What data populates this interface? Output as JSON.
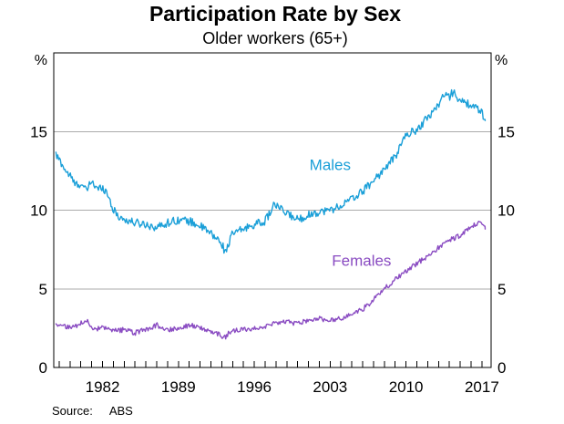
{
  "page": {
    "title": "Participation Rate by Sex",
    "subtitle": "Older workers (65+)"
  },
  "footer": {
    "source_label": "Source:",
    "source_value": "ABS"
  },
  "chart_data": {
    "type": "line",
    "title": "Participation Rate by Sex",
    "subtitle": "Older workers (65+)",
    "unit": "%",
    "unit_label_left": "%",
    "unit_label_right": "%",
    "source": "ABS",
    "x_range": [
      1977.5,
      2017.85
    ],
    "ylim": [
      0,
      20
    ],
    "yticks": [
      0,
      5,
      10,
      15
    ],
    "gridlines": [
      5,
      10,
      15
    ],
    "grid": true,
    "grid_color": "#ababab",
    "x_minor_tick_step": 1,
    "xtick_label_years": [
      1982,
      1989,
      1996,
      2003,
      2010,
      2017
    ],
    "legend_position": "inline-labels",
    "frequency": "monthly",
    "series": [
      {
        "name": "Males",
        "color": "#1a9fd8",
        "noise_amplitude": 0.26,
        "label_anchor": {
          "x": 2003.0,
          "y": 12.9
        },
        "anchors": [
          [
            1977.7,
            13.5
          ],
          [
            1978.2,
            13.0
          ],
          [
            1978.7,
            12.4
          ],
          [
            1979,
            12.2
          ],
          [
            1979.5,
            11.6
          ],
          [
            1980,
            11.7
          ],
          [
            1980.5,
            11.2
          ],
          [
            1981,
            11.9
          ],
          [
            1981.5,
            11.3
          ],
          [
            1982,
            11.5
          ],
          [
            1982.5,
            11.0
          ],
          [
            1983,
            10.0
          ],
          [
            1983.5,
            9.6
          ],
          [
            1984,
            9.4
          ],
          [
            1985,
            9.2
          ],
          [
            1986,
            9.1
          ],
          [
            1987,
            8.9
          ],
          [
            1988,
            9.2
          ],
          [
            1989,
            9.4
          ],
          [
            1990,
            9.3
          ],
          [
            1991,
            9.0
          ],
          [
            1992,
            8.5
          ],
          [
            1993,
            7.9
          ],
          [
            1993.3,
            7.3
          ],
          [
            1994,
            8.5
          ],
          [
            1995,
            8.8
          ],
          [
            1996,
            9.1
          ],
          [
            1997,
            9.3
          ],
          [
            1997.9,
            10.4
          ],
          [
            1998.5,
            10.0
          ],
          [
            1999,
            9.8
          ],
          [
            2000,
            9.4
          ],
          [
            2001,
            9.7
          ],
          [
            2002,
            9.9
          ],
          [
            2003,
            10.0
          ],
          [
            2004,
            10.3
          ],
          [
            2005,
            10.7
          ],
          [
            2006,
            11.2
          ],
          [
            2007,
            11.9
          ],
          [
            2008,
            12.6
          ],
          [
            2009,
            13.4
          ],
          [
            2010,
            14.8
          ],
          [
            2011,
            15.1
          ],
          [
            2012,
            15.9
          ],
          [
            2013,
            16.7
          ],
          [
            2013.4,
            17.3
          ],
          [
            2014,
            17.2
          ],
          [
            2014.4,
            17.6
          ],
          [
            2015,
            16.9
          ],
          [
            2016,
            16.7
          ],
          [
            2017,
            16.2
          ],
          [
            2017.3,
            15.7
          ]
        ]
      },
      {
        "name": "Females",
        "color": "#8a4cc2",
        "noise_amplitude": 0.16,
        "label_anchor": {
          "x": 2005.9,
          "y": 6.8
        },
        "anchors": [
          [
            1977.7,
            2.8
          ],
          [
            1978,
            2.7
          ],
          [
            1979,
            2.5
          ],
          [
            1980,
            2.8
          ],
          [
            1980.5,
            3.1
          ],
          [
            1981,
            2.4
          ],
          [
            1982,
            2.5
          ],
          [
            1983,
            2.3
          ],
          [
            1984,
            2.4
          ],
          [
            1985,
            2.2
          ],
          [
            1986,
            2.4
          ],
          [
            1987,
            2.7
          ],
          [
            1988,
            2.4
          ],
          [
            1989,
            2.5
          ],
          [
            1990,
            2.7
          ],
          [
            1991,
            2.5
          ],
          [
            1992,
            2.3
          ],
          [
            1992.8,
            2.1
          ],
          [
            1993.2,
            1.85
          ],
          [
            1993.6,
            2.15
          ],
          [
            1994,
            2.3
          ],
          [
            1995,
            2.4
          ],
          [
            1996,
            2.5
          ],
          [
            1997,
            2.6
          ],
          [
            1998,
            2.8
          ],
          [
            1999,
            2.9
          ],
          [
            2000,
            2.8
          ],
          [
            2001,
            3.0
          ],
          [
            2002,
            3.1
          ],
          [
            2003,
            3.0
          ],
          [
            2004,
            3.1
          ],
          [
            2005,
            3.4
          ],
          [
            2006,
            3.7
          ],
          [
            2007,
            4.3
          ],
          [
            2008,
            5.0
          ],
          [
            2009,
            5.6
          ],
          [
            2010,
            6.1
          ],
          [
            2011,
            6.6
          ],
          [
            2012,
            7.1
          ],
          [
            2013,
            7.6
          ],
          [
            2014,
            8.1
          ],
          [
            2015,
            8.4
          ],
          [
            2016,
            8.9
          ],
          [
            2016.9,
            9.3
          ],
          [
            2017.3,
            8.8
          ]
        ]
      }
    ]
  }
}
